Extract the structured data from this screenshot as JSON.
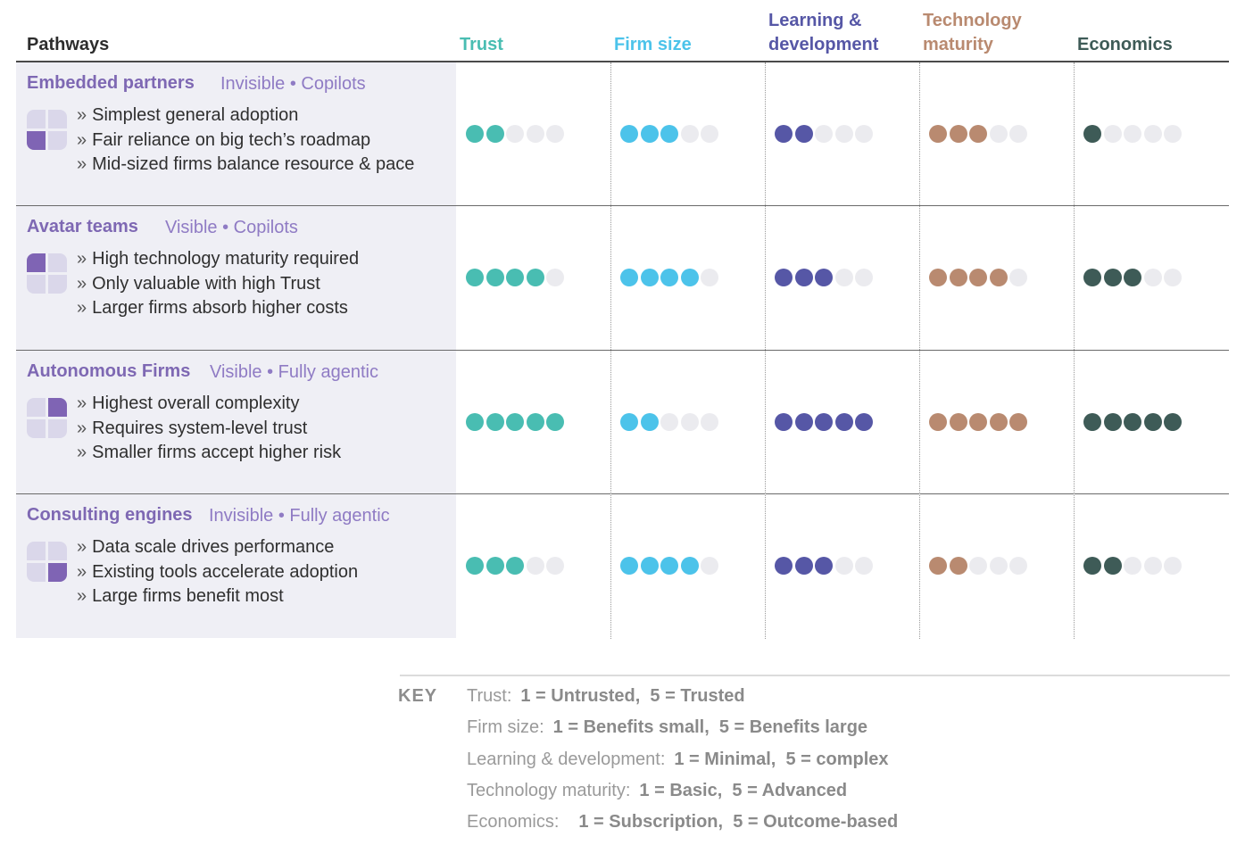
{
  "header": {
    "pathways": "Pathways",
    "columns": [
      {
        "line1": "",
        "line2": "Trust",
        "color": "#49bdb2"
      },
      {
        "line1": "",
        "line2": "Firm size",
        "color": "#4cc3ea"
      },
      {
        "line1": "Learning &",
        "line2": "development",
        "color": "#5657a6"
      },
      {
        "line1": "Technology",
        "line2": "maturity",
        "color": "#b98a70"
      },
      {
        "line1": "",
        "line2": "Economics",
        "color": "#3e5b57"
      }
    ]
  },
  "dot_colors": {
    "empty": "#ebebef",
    "trust": "#49bdb2",
    "firm_size": "#4cc3ea",
    "learning": "#5657a6",
    "technology": "#b98a70",
    "economics": "#3e5b57"
  },
  "rows": [
    {
      "name": "Embedded partners",
      "tag": "Invisible • Copilots",
      "quadrant": "bottom-left",
      "bullets": [
        "Simplest general adoption",
        "Fair reliance on big tech’s roadmap",
        "Mid-sized firms balance resource & pace"
      ],
      "ratings": [
        2,
        3,
        2,
        3,
        1
      ]
    },
    {
      "name": "Avatar teams",
      "tag": "Visible • Copilots",
      "quadrant": "top-left",
      "bullets": [
        "High technology maturity required",
        "Only valuable with high Trust",
        "Larger firms absorb higher costs"
      ],
      "ratings": [
        4,
        4,
        3,
        4,
        3
      ]
    },
    {
      "name": "Autonomous Firms",
      "tag": "Visible • Fully agentic",
      "quadrant": "top-right",
      "bullets": [
        "Highest overall complexity",
        "Requires system-level trust",
        "Smaller firms accept higher risk"
      ],
      "ratings": [
        5,
        2,
        5,
        5,
        5
      ]
    },
    {
      "name": "Consulting engines",
      "tag": "Invisible • Fully agentic",
      "quadrant": "bottom-right",
      "bullets": [
        "Data scale drives performance",
        "Existing tools accelerate adoption",
        "Large firms benefit most"
      ],
      "ratings": [
        3,
        4,
        3,
        2,
        2
      ]
    }
  ],
  "bullet_marker": "»",
  "key": {
    "title": "KEY",
    "lines": [
      {
        "label": "Trust:",
        "low": "1 = Untrusted,",
        "high": "5 = Trusted"
      },
      {
        "label": "Firm size:",
        "low": "1 = Benefits small,",
        "high": "5 = Benefits large"
      },
      {
        "label": "Learning & development:",
        "low": "1 = Minimal,",
        "high": "5 = complex"
      },
      {
        "label": "Technology maturity:",
        "low": "1 = Basic,",
        "high": "5 = Advanced"
      },
      {
        "label": "Economics:",
        "low": "1 = Subscription,",
        "high": "5 = Outcome-based"
      }
    ]
  }
}
